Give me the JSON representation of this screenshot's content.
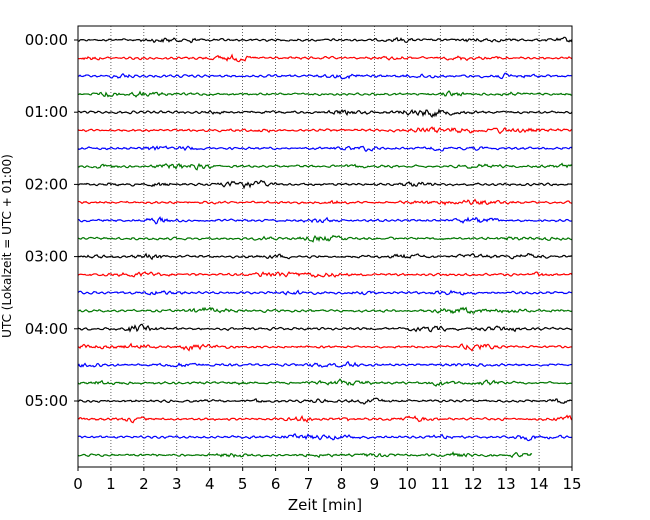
{
  "chart_data": {
    "type": "line",
    "title": "",
    "xlabel": "Zeit  [min]",
    "ylabel": "UTC (Lokalzeit = UTC + 01:00)",
    "xlim": [
      0,
      15
    ],
    "x_ticks": [
      0,
      1,
      2,
      3,
      4,
      5,
      6,
      7,
      8,
      9,
      10,
      11,
      12,
      13,
      14,
      15
    ],
    "grid": "vertical-dotted",
    "hour_labels": [
      "00:00",
      "01:00",
      "02:00",
      "03:00",
      "04:00",
      "05:00"
    ],
    "trace_colors": [
      "#000000",
      "#ff0000",
      "#0000ff",
      "#007700"
    ],
    "trace_minutes": 15,
    "trace_count": 24,
    "last_trace_end_minute": 13.8
  }
}
